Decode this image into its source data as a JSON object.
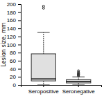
{
  "chart_data": {
    "type": "box",
    "ylabel": "Lesion size, mm",
    "categories": [
      "Seropositive",
      "Seronegative"
    ],
    "boxes": [
      {
        "q1": 10,
        "median": 15,
        "q3": 77,
        "whisker_low": 0,
        "whisker_high": 130,
        "fliers": [
          190,
          195
        ]
      },
      {
        "q1": 5,
        "median": 8,
        "q3": 13,
        "whisker_low": 0,
        "whisker_high": 20,
        "fliers": [
          22,
          24,
          25,
          26,
          27,
          28,
          30,
          32,
          35
        ]
      }
    ],
    "color": "#e0e0e0",
    "ylim": [
      0,
      200
    ],
    "yticks": [
      0,
      20,
      40,
      60,
      80,
      100,
      120,
      140,
      160,
      180,
      200
    ],
    "grid": false
  }
}
